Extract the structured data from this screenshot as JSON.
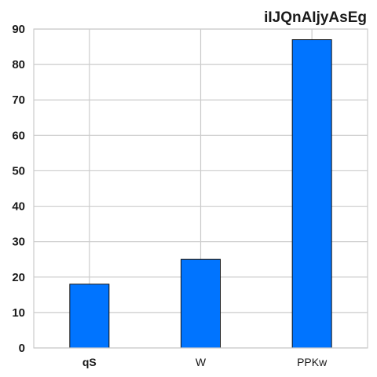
{
  "chart_data": {
    "type": "bar",
    "title": "iIJQnAIjyAsEg",
    "xlabel": "",
    "ylabel": "",
    "categories": [
      "qS",
      "W",
      "PPKw"
    ],
    "category_bold": [
      true,
      false,
      false
    ],
    "values": [
      18,
      25,
      87
    ],
    "ylim": [
      0,
      90
    ],
    "yticks": [
      "0",
      "10",
      "20",
      "30",
      "40",
      "50",
      "60",
      "70",
      "80",
      "90"
    ],
    "grid": true,
    "legend": "none",
    "bar_color": "#0074ff",
    "bar_edge_color": "#111111",
    "grid_color": "#cccccc"
  }
}
